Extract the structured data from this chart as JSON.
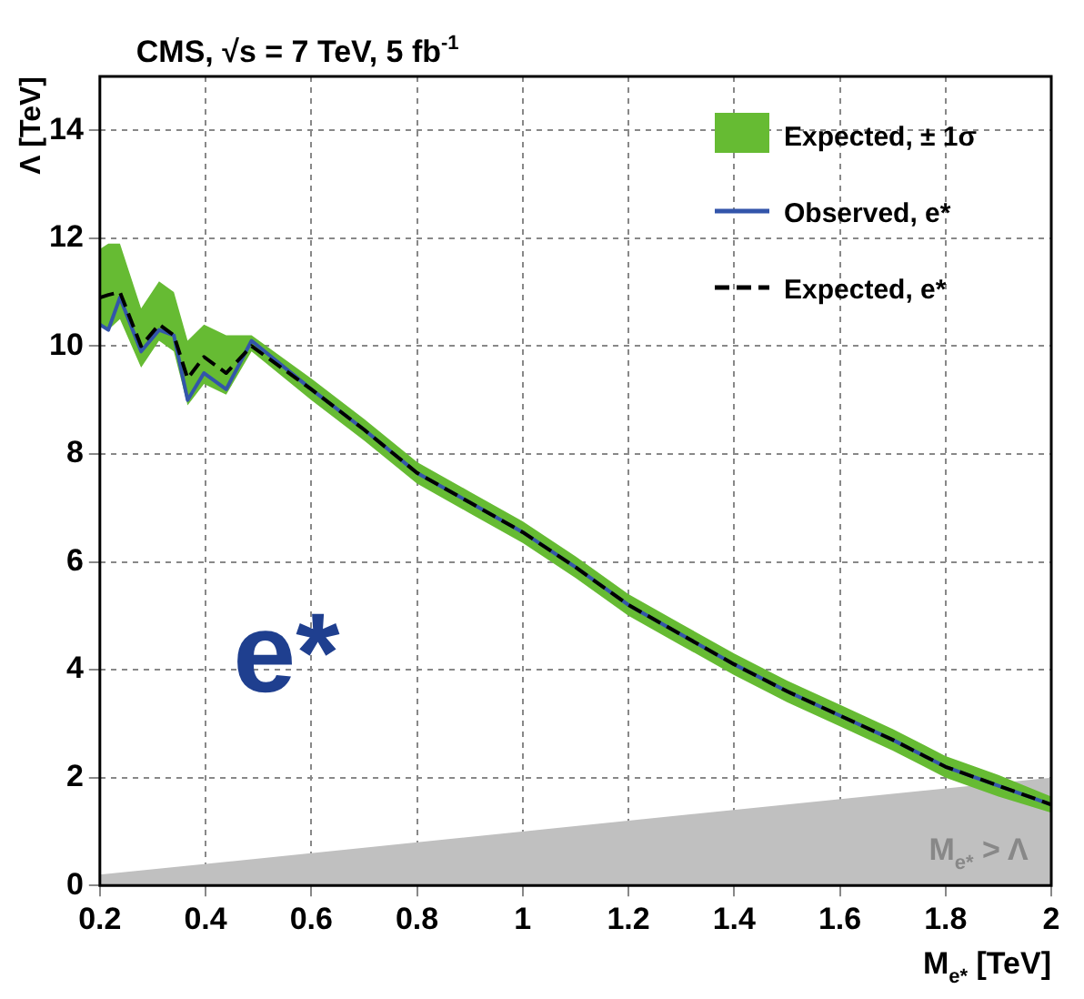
{
  "chart_data": {
    "type": "line",
    "title": "CMS, √s = 7 TeV, 5 fb$^{-1}$",
    "xlabel": "M$_{e*}$ [TeV]",
    "ylabel": "Λ [TeV]",
    "x": [
      0.2,
      0.216,
      0.238,
      0.278,
      0.312,
      0.34,
      0.366,
      0.397,
      0.439,
      0.487,
      0.6,
      0.7,
      0.8,
      0.9,
      1.0,
      1.1,
      1.2,
      1.3,
      1.4,
      1.5,
      1.6,
      1.7,
      1.8,
      1.9,
      2.0
    ],
    "series": [
      {
        "name": "Expected, ± 1σ",
        "type": "area",
        "color": "#66bb33",
        "values": [
          null,
          null,
          null,
          null,
          null,
          null,
          null,
          null,
          null,
          null,
          null,
          null,
          null,
          null,
          null,
          null,
          null,
          null,
          null,
          null,
          null,
          null,
          null,
          null,
          null
        ],
        "lower": [
          10.4,
          10.3,
          10.5,
          9.6,
          10.1,
          9.9,
          8.9,
          9.3,
          9.1,
          9.9,
          9.0,
          8.25,
          7.45,
          6.9,
          6.35,
          5.7,
          5.0,
          4.45,
          3.9,
          3.4,
          2.95,
          2.5,
          2.0,
          1.65,
          1.35
        ],
        "upper": [
          11.8,
          11.9,
          11.9,
          10.7,
          11.2,
          11.0,
          10.1,
          10.4,
          10.2,
          10.2,
          9.4,
          8.65,
          7.85,
          7.3,
          6.75,
          6.1,
          5.4,
          4.85,
          4.3,
          3.8,
          3.35,
          2.9,
          2.4,
          2.05,
          1.65
        ]
      },
      {
        "name": "Observed, e*",
        "type": "line",
        "color": "#3355aa",
        "line_style": "solid",
        "values": [
          10.4,
          10.3,
          10.9,
          9.9,
          10.3,
          10.2,
          9.0,
          9.5,
          9.2,
          10.1,
          9.2,
          8.45,
          7.65,
          7.1,
          6.55,
          5.9,
          5.2,
          4.65,
          4.1,
          3.6,
          3.15,
          2.7,
          2.2,
          1.85,
          1.5
        ]
      },
      {
        "name": "Expected, e*",
        "type": "line",
        "color": "#000000",
        "line_style": "dashed",
        "values": [
          10.9,
          10.95,
          11.0,
          10.0,
          10.4,
          10.2,
          9.4,
          9.8,
          9.5,
          10.0,
          9.2,
          8.45,
          7.65,
          7.1,
          6.55,
          5.9,
          5.2,
          4.65,
          4.1,
          3.6,
          3.15,
          2.7,
          2.2,
          1.85,
          1.5
        ]
      },
      {
        "type": "area",
        "color": "#c0c0c0",
        "x": [
          0.2,
          2.0
        ],
        "values": [
          0.2,
          2.0
        ]
      }
    ],
    "xlim": [
      0.2,
      2.0
    ],
    "xticks": [
      0.2,
      0.4,
      0.6,
      0.8,
      1,
      1.2,
      1.4,
      1.6,
      1.8,
      2
    ],
    "ylim": [
      0,
      15
    ],
    "yticks": [
      0,
      2,
      4,
      6,
      8,
      10,
      12,
      14
    ],
    "grid": true,
    "legend": "top right",
    "marker": "none",
    "annotations": [
      "e*",
      "M$_{e*}$ > Λ"
    ]
  }
}
